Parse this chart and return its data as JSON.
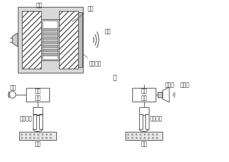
{
  "bg_color": "#ffffff",
  "line_color": "#555555",
  "label_ciji": "磁铁",
  "label_yinquan": "音圈",
  "label_shengbo": "声波",
  "label_jinshu": "金属膜片",
  "label_jia": "甲",
  "label_huatong": "话筒",
  "label_yangshengqi": "扬声器",
  "label_fangda": "放大\n电路",
  "label_luyin": "录音磁头",
  "label_cidai": "磁带",
  "font_size_label": 5.5,
  "font_size_jia": 6.5
}
